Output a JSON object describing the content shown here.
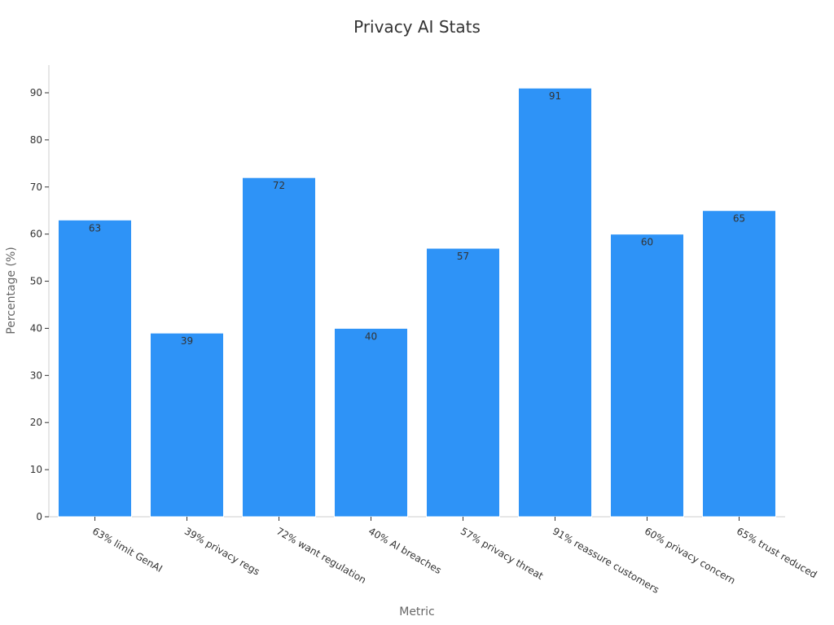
{
  "chart_data": {
    "type": "bar",
    "title": "Privacy AI Stats",
    "xlabel": "Metric",
    "ylabel": "Percentage (%)",
    "categories": [
      "63% limit GenAI",
      "39% privacy regs",
      "72% want regulation",
      "40% AI breaches",
      "57% privacy threat",
      "91% reassure customers",
      "60% privacy concern",
      "65% trust reduced"
    ],
    "values": [
      63,
      39,
      72,
      40,
      57,
      91,
      60,
      65
    ],
    "ylim": [
      0,
      96
    ],
    "yticks": [
      0,
      10,
      20,
      30,
      40,
      50,
      60,
      70,
      80,
      90
    ],
    "bar_color": "#2e93f7",
    "grid": false,
    "legend": "none"
  }
}
